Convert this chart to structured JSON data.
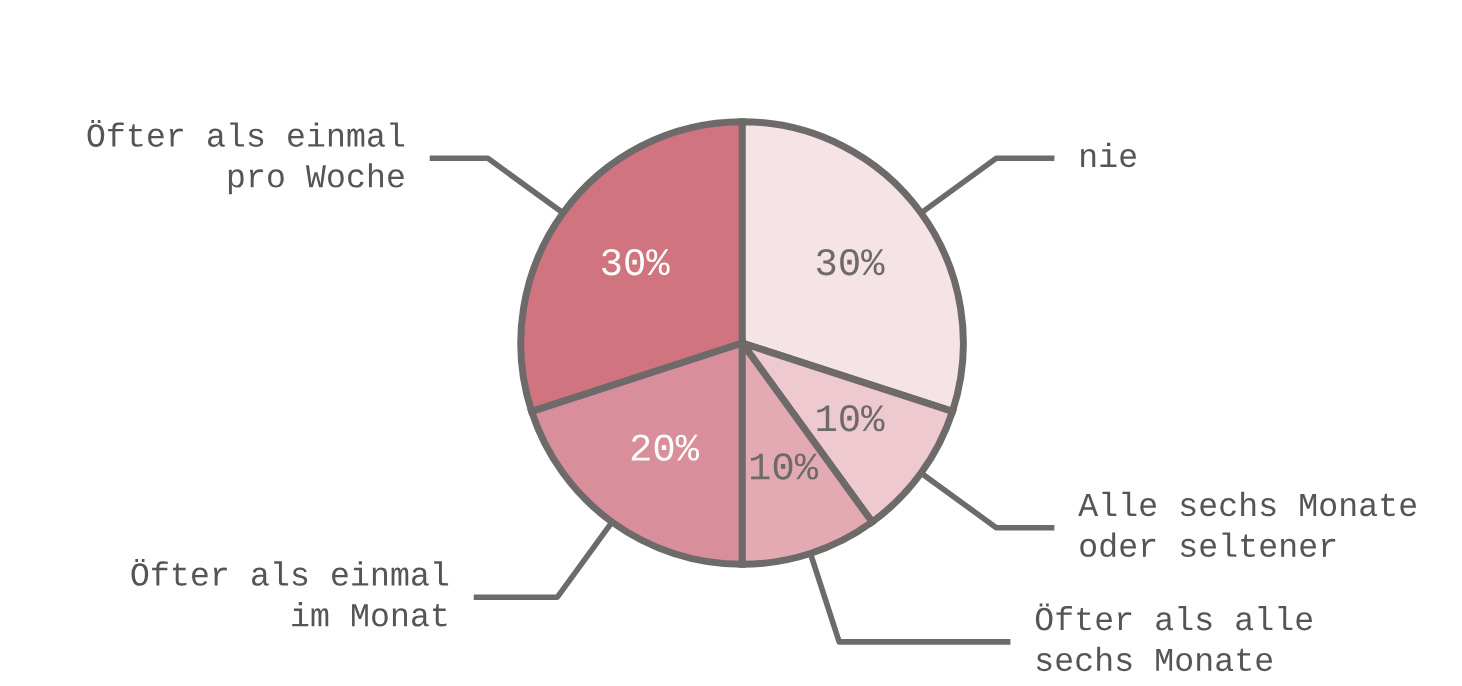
{
  "chart_data": {
    "type": "pie",
    "categories": [
      "nie",
      "Alle sechs Monate\noder seltener",
      "Öfter als alle\nsechs Monate",
      "Öfter als einmal\nim Monat",
      "Öfter als einmal\npro Woche"
    ],
    "values": [
      30,
      10,
      10,
      20,
      30
    ],
    "colors": [
      "#f5e3e6",
      "#efc9d0",
      "#e3aab3",
      "#d98f9b",
      "#d07580"
    ],
    "value_labels": [
      "30%",
      "10%",
      "10%",
      "20%",
      "30%"
    ],
    "legend": false
  }
}
